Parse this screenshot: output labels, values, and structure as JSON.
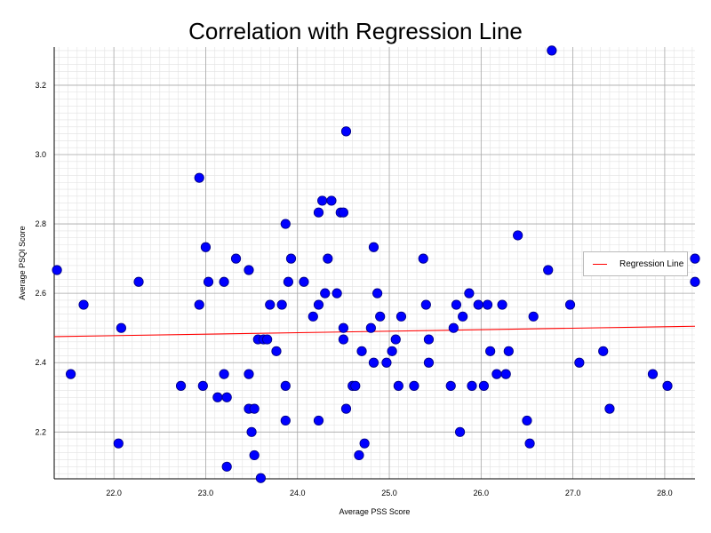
{
  "chart_data": {
    "type": "scatter",
    "title": "Correlation with Regression Line",
    "xlabel": "Average PSS Score",
    "ylabel": "Average PSQI Score",
    "xlim": [
      21.35,
      28.33
    ],
    "ylim": [
      2.065,
      3.31
    ],
    "xticks": [
      "22.0",
      "23.0",
      "24.0",
      "25.0",
      "26.0",
      "27.0",
      "28.0"
    ],
    "yticks": [
      "2.2",
      "2.4",
      "2.6",
      "2.8",
      "3.0",
      "3.2"
    ],
    "grid": "major and minor",
    "legend": {
      "position": "right",
      "entries": [
        "Regression Line"
      ]
    },
    "colors": {
      "points": "#0000ff",
      "point_edge": "#000080",
      "regression": "#ff0000"
    },
    "regression_line": {
      "x": [
        21.35,
        28.33
      ],
      "y": [
        2.475,
        2.505
      ]
    },
    "series": [
      {
        "x": [
          21.38,
          21.53,
          21.67,
          22.05,
          22.08,
          22.27,
          22.73,
          22.93,
          22.93,
          22.97,
          23.0,
          23.03,
          23.13,
          23.2,
          23.2,
          23.23,
          23.23,
          23.33,
          23.47,
          23.47,
          23.47,
          23.5,
          23.53,
          23.53,
          23.57,
          23.6,
          23.63,
          23.67,
          23.7,
          23.77,
          23.83,
          23.87,
          23.87,
          23.87,
          23.9,
          23.93,
          24.07,
          24.17,
          24.23,
          24.23,
          24.23,
          24.27,
          24.3,
          24.33,
          24.37,
          24.43,
          24.47,
          24.5,
          24.5,
          24.5,
          24.53,
          24.53,
          24.6,
          24.63,
          24.67,
          24.7,
          24.73,
          24.8,
          24.83,
          24.83,
          24.87,
          24.9,
          24.97,
          25.03,
          25.07,
          25.1,
          25.13,
          25.27,
          25.37,
          25.4,
          25.43,
          25.43,
          25.67,
          25.7,
          25.73,
          25.77,
          25.8,
          25.87,
          25.9,
          25.97,
          26.03,
          26.07,
          26.1,
          26.17,
          26.23,
          26.27,
          26.3,
          26.4,
          26.5,
          26.53,
          26.57,
          26.73,
          26.77,
          26.97,
          27.07,
          27.33,
          27.4,
          27.87,
          28.03,
          28.33,
          28.33
        ],
        "y": [
          2.667,
          2.367,
          2.567,
          2.167,
          2.5,
          2.633,
          2.333,
          2.933,
          2.567,
          2.333,
          2.733,
          2.633,
          2.3,
          2.367,
          2.633,
          2.1,
          2.3,
          2.7,
          2.667,
          2.367,
          2.267,
          2.2,
          2.133,
          2.267,
          2.467,
          2.067,
          2.467,
          2.467,
          2.567,
          2.433,
          2.567,
          2.8,
          2.333,
          2.233,
          2.633,
          2.7,
          2.633,
          2.533,
          2.567,
          2.833,
          2.233,
          2.867,
          2.6,
          2.7,
          2.867,
          2.6,
          2.833,
          2.5,
          2.467,
          2.833,
          3.067,
          2.267,
          2.333,
          2.333,
          2.133,
          2.433,
          2.167,
          2.5,
          2.4,
          2.733,
          2.6,
          2.533,
          2.4,
          2.433,
          2.467,
          2.333,
          2.533,
          2.333,
          2.7,
          2.567,
          2.467,
          2.4,
          2.333,
          2.5,
          2.567,
          2.2,
          2.533,
          2.6,
          2.333,
          2.567,
          2.333,
          2.567,
          2.433,
          2.367,
          2.567,
          2.367,
          2.433,
          2.767,
          2.233,
          2.167,
          2.533,
          2.667,
          3.3,
          2.567,
          2.4,
          2.433,
          2.267,
          2.367,
          2.333,
          2.7,
          2.633
        ]
      }
    ]
  }
}
